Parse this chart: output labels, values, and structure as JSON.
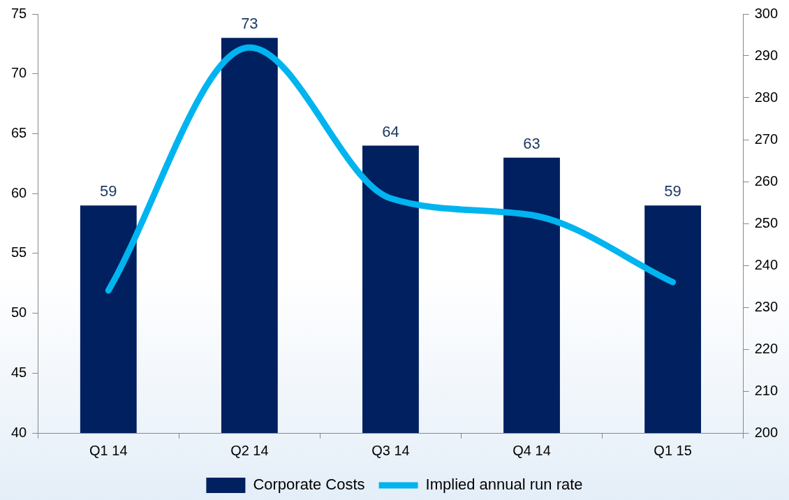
{
  "chart_data": {
    "type": "bar",
    "categories": [
      "Q1 14",
      "Q2 14",
      "Q3 14",
      "Q4 14",
      "Q1 15"
    ],
    "series": [
      {
        "name": "Corporate Costs",
        "color": "#002060",
        "values": [
          59,
          73,
          64,
          63,
          59
        ],
        "value_labels": [
          "59",
          "73",
          "64",
          "63",
          "59"
        ]
      },
      {
        "name": "Implied annual run rate",
        "type": "line",
        "axis": "y2",
        "color": "#00b4f0",
        "values": [
          234,
          292,
          256,
          252,
          236
        ]
      }
    ],
    "ylim": [
      40,
      75
    ],
    "yticks": [
      40,
      45,
      50,
      55,
      60,
      65,
      70,
      75
    ],
    "y2lim": [
      200,
      300
    ],
    "y2ticks": [
      200,
      210,
      220,
      230,
      240,
      250,
      260,
      270,
      280,
      290,
      300
    ],
    "grid": false,
    "legend": "bottom",
    "marker": "none",
    "line_style": "solid"
  }
}
